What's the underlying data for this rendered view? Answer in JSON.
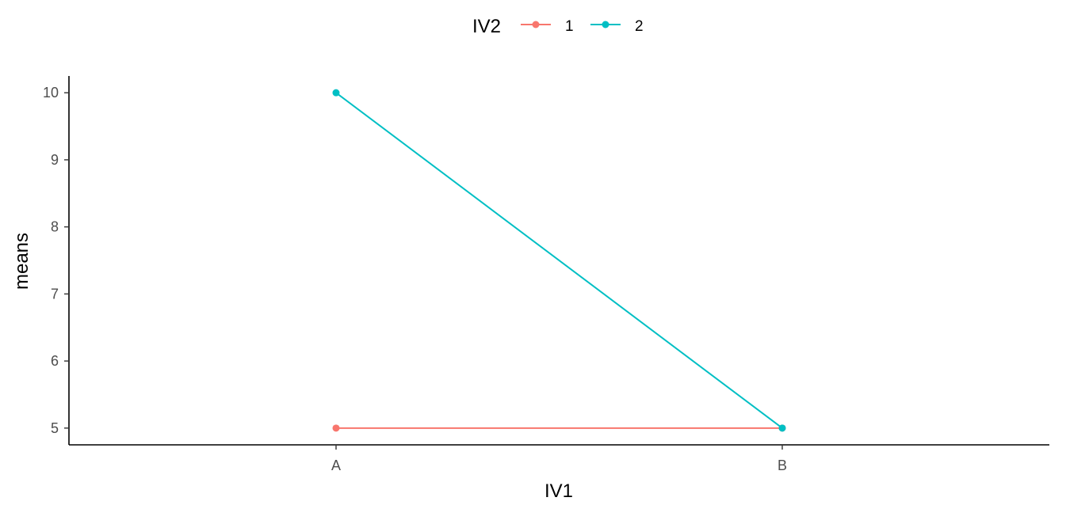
{
  "chart_data": {
    "type": "line",
    "categories": [
      "A",
      "B"
    ],
    "xlabel": "IV1",
    "ylabel": "means",
    "ylim": [
      4.75,
      10.25
    ],
    "yticks": [
      5,
      6,
      7,
      8,
      9,
      10
    ],
    "grid": false,
    "legend": {
      "title": "IV2",
      "position": "top",
      "entries": [
        "1",
        "2"
      ]
    },
    "series": [
      {
        "name": "1",
        "color": "#F8766D",
        "values": [
          5,
          5
        ]
      },
      {
        "name": "2",
        "color": "#00BFC4",
        "values": [
          10,
          5
        ]
      }
    ]
  }
}
